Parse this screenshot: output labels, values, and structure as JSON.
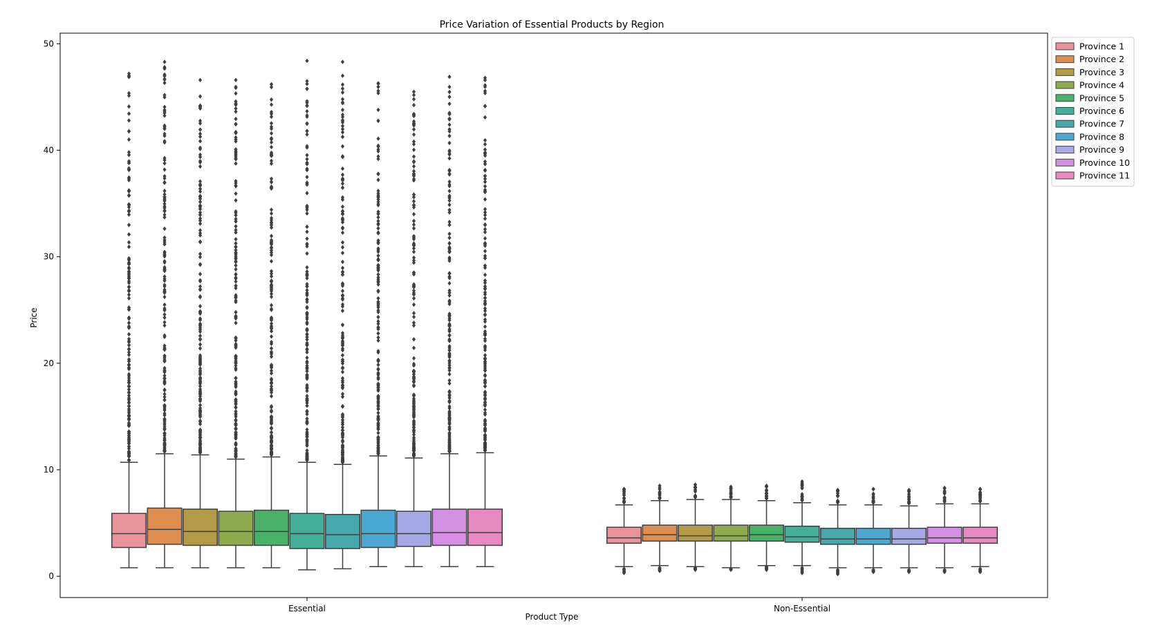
{
  "chart_data": {
    "type": "box",
    "title": "Price Variation of Essential Products by Region",
    "xlabel": "Product Type",
    "ylabel": "Price",
    "ylim": [
      -2,
      51
    ],
    "yticks": [
      0,
      10,
      20,
      30,
      40,
      50
    ],
    "categories": [
      "Essential",
      "Non-Essential"
    ],
    "legend_position": "top-right",
    "grid": false,
    "series": [
      {
        "name": "Province 1",
        "color": "#e8939a",
        "boxes": [
          {
            "min": 0.8,
            "q1": 2.7,
            "median": 4.0,
            "q3": 5.9,
            "max": 10.7,
            "fliers_low": [],
            "fliers_high_range": [
              10.9,
              47.2
            ]
          },
          {
            "min": 0.9,
            "q1": 3.1,
            "median": 3.6,
            "q3": 4.6,
            "max": 6.7,
            "fliers_low_range": [
              0.3,
              0.7
            ],
            "fliers_high_range": [
              6.9,
              8.2
            ]
          }
        ]
      },
      {
        "name": "Province 2",
        "color": "#de8f4f",
        "boxes": [
          {
            "min": 0.8,
            "q1": 3.0,
            "median": 4.4,
            "q3": 6.4,
            "max": 11.5,
            "fliers_low": [],
            "fliers_high_range": [
              11.7,
              48.3
            ]
          },
          {
            "min": 1.0,
            "q1": 3.3,
            "median": 3.9,
            "q3": 4.8,
            "max": 7.1,
            "fliers_low_range": [
              0.5,
              0.8
            ],
            "fliers_high_range": [
              7.3,
              8.5
            ]
          }
        ]
      },
      {
        "name": "Province 3",
        "color": "#b39a48",
        "boxes": [
          {
            "min": 0.8,
            "q1": 2.9,
            "median": 4.2,
            "q3": 6.3,
            "max": 11.4,
            "fliers_low": [],
            "fliers_high_range": [
              11.6,
              46.6
            ]
          },
          {
            "min": 0.9,
            "q1": 3.3,
            "median": 3.8,
            "q3": 4.8,
            "max": 7.2,
            "fliers_low_range": [
              0.6,
              0.8
            ],
            "fliers_high_range": [
              7.4,
              8.6
            ]
          }
        ]
      },
      {
        "name": "Province 4",
        "color": "#8fa94e",
        "boxes": [
          {
            "min": 0.8,
            "q1": 2.9,
            "median": 4.2,
            "q3": 6.1,
            "max": 11.0,
            "fliers_low": [],
            "fliers_high_range": [
              11.2,
              46.6
            ]
          },
          {
            "min": 0.8,
            "q1": 3.3,
            "median": 3.8,
            "q3": 4.8,
            "max": 7.2,
            "fliers_low_range": [
              0.6,
              0.7
            ],
            "fliers_high_range": [
              7.4,
              8.4
            ]
          }
        ]
      },
      {
        "name": "Province 5",
        "color": "#4ab168",
        "boxes": [
          {
            "min": 0.8,
            "q1": 2.9,
            "median": 4.2,
            "q3": 6.2,
            "max": 11.2,
            "fliers_low": [],
            "fliers_high_range": [
              11.4,
              46.2
            ]
          },
          {
            "min": 1.0,
            "q1": 3.3,
            "median": 3.9,
            "q3": 4.8,
            "max": 7.1,
            "fliers_low_range": [
              0.6,
              0.9
            ],
            "fliers_high_range": [
              7.3,
              8.5
            ]
          }
        ]
      },
      {
        "name": "Province 6",
        "color": "#45ae96",
        "boxes": [
          {
            "min": 0.6,
            "q1": 2.6,
            "median": 4.0,
            "q3": 5.9,
            "max": 10.7,
            "fliers_low": [],
            "fliers_high_range": [
              10.9,
              48.4
            ]
          },
          {
            "min": 1.0,
            "q1": 3.2,
            "median": 3.7,
            "q3": 4.7,
            "max": 6.9,
            "fliers_low_range": [
              0.3,
              0.8
            ],
            "fliers_high_range": [
              7.1,
              8.9
            ]
          }
        ]
      },
      {
        "name": "Province 7",
        "color": "#47a9ad",
        "boxes": [
          {
            "min": 0.7,
            "q1": 2.6,
            "median": 3.9,
            "q3": 5.8,
            "max": 10.5,
            "fliers_low": [],
            "fliers_high_range": [
              10.7,
              48.3
            ]
          },
          {
            "min": 0.8,
            "q1": 3.0,
            "median": 3.5,
            "q3": 4.5,
            "max": 6.7,
            "fliers_low_range": [
              0.2,
              0.6
            ],
            "fliers_high_range": [
              6.9,
              8.1
            ]
          }
        ]
      },
      {
        "name": "Province 8",
        "color": "#4ba8d3",
        "boxes": [
          {
            "min": 0.9,
            "q1": 2.7,
            "median": 4.0,
            "q3": 6.2,
            "max": 11.3,
            "fliers_low": [],
            "fliers_high_range": [
              11.5,
              46.3
            ]
          },
          {
            "min": 0.8,
            "q1": 3.0,
            "median": 3.5,
            "q3": 4.5,
            "max": 6.7,
            "fliers_low_range": [
              0.4,
              0.6
            ],
            "fliers_high_range": [
              6.9,
              8.2
            ]
          }
        ]
      },
      {
        "name": "Province 9",
        "color": "#a7a9e6",
        "boxes": [
          {
            "min": 0.9,
            "q1": 2.8,
            "median": 4.0,
            "q3": 6.1,
            "max": 11.1,
            "fliers_low": [],
            "fliers_high_range": [
              11.3,
              45.5
            ]
          },
          {
            "min": 0.8,
            "q1": 3.0,
            "median": 3.5,
            "q3": 4.5,
            "max": 6.6,
            "fliers_low_range": [
              0.4,
              0.6
            ],
            "fliers_high_range": [
              6.8,
              8.1
            ]
          }
        ]
      },
      {
        "name": "Province 10",
        "color": "#d48ee2",
        "boxes": [
          {
            "min": 0.9,
            "q1": 2.9,
            "median": 4.1,
            "q3": 6.3,
            "max": 11.5,
            "fliers_low": [],
            "fliers_high_range": [
              11.7,
              46.9
            ]
          },
          {
            "min": 0.8,
            "q1": 3.1,
            "median": 3.6,
            "q3": 4.6,
            "max": 6.8,
            "fliers_low_range": [
              0.4,
              0.6
            ],
            "fliers_high_range": [
              7.0,
              8.3
            ]
          }
        ]
      },
      {
        "name": "Province 11",
        "color": "#e78ac2",
        "boxes": [
          {
            "min": 0.9,
            "q1": 2.9,
            "median": 4.1,
            "q3": 6.3,
            "max": 11.6,
            "fliers_low": [],
            "fliers_high_range": [
              11.8,
              46.8
            ]
          },
          {
            "min": 0.9,
            "q1": 3.1,
            "median": 3.6,
            "q3": 4.6,
            "max": 6.8,
            "fliers_low_range": [
              0.4,
              0.7
            ],
            "fliers_high_range": [
              7.0,
              8.2
            ]
          }
        ]
      }
    ]
  }
}
